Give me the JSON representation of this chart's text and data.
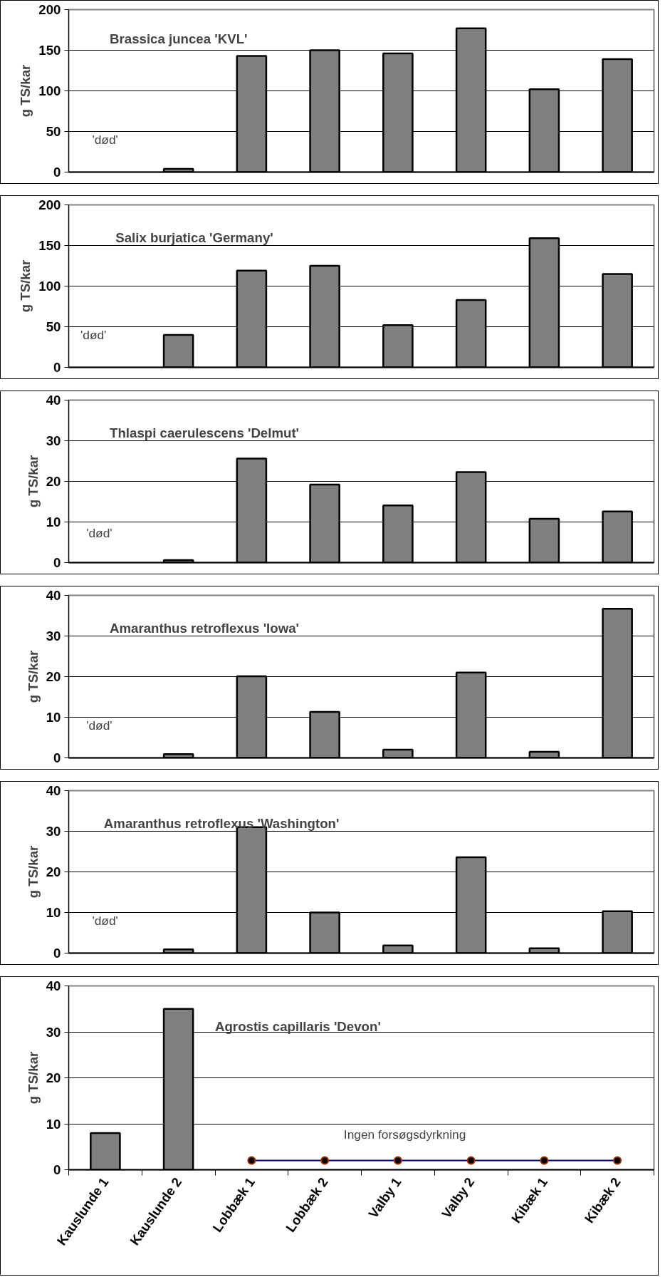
{
  "chart_data": [
    {
      "type": "bar",
      "title": "Brassica juncea 'KVL'",
      "ylabel": "g TS/kar",
      "categories": [
        null,
        null,
        null,
        null,
        null,
        null,
        null,
        null
      ],
      "values": [
        null,
        4,
        143,
        150,
        146,
        177,
        102,
        139
      ],
      "color": "#808080",
      "ylim": [
        0,
        200
      ],
      "yticks": [
        0,
        50,
        100,
        150,
        200
      ],
      "grid": "y",
      "tick_labels": "y",
      "annotations": [
        "'død'"
      ]
    },
    {
      "type": "bar",
      "title": "Salix burjatica 'Germany'",
      "ylabel": "g TS/kar",
      "categories": [
        null,
        null,
        null,
        null,
        null,
        null,
        null,
        null
      ],
      "values": [
        null,
        40,
        119,
        125,
        52,
        83,
        159,
        115
      ],
      "color": "#808080",
      "ylim": [
        0,
        200
      ],
      "yticks": [
        0,
        50,
        100,
        150,
        200
      ],
      "grid": "y",
      "tick_labels": "y",
      "annotations": [
        "'død'"
      ]
    },
    {
      "type": "bar",
      "title": "Thlaspi caerulescens 'Delmut'",
      "ylabel": "g TS/kar",
      "categories": [
        null,
        null,
        null,
        null,
        null,
        null,
        null,
        null
      ],
      "values": [
        null,
        0.6,
        25.6,
        19.2,
        14.1,
        22.3,
        10.8,
        12.6
      ],
      "color": "#808080",
      "ylim": [
        0,
        40
      ],
      "yticks": [
        0,
        10,
        20,
        30,
        40
      ],
      "grid": "y",
      "tick_labels": "y",
      "annotations": [
        "'død'"
      ]
    },
    {
      "type": "bar",
      "title": "Amaranthus retroflexus 'Iowa'",
      "ylabel": "g TS/kar",
      "categories": [
        null,
        null,
        null,
        null,
        null,
        null,
        null,
        null
      ],
      "values": [
        null,
        0.9,
        20.1,
        11.3,
        2.0,
        21.0,
        1.5,
        36.7
      ],
      "color": "#808080",
      "ylim": [
        0,
        40
      ],
      "yticks": [
        0,
        10,
        20,
        30,
        40
      ],
      "grid": "y",
      "tick_labels": "y",
      "annotations": [
        "'død'"
      ]
    },
    {
      "type": "bar",
      "title": "Amaranthus retroflexus 'Washington'",
      "ylabel": "g TS/kar",
      "categories": [
        null,
        null,
        null,
        null,
        null,
        null,
        null,
        null
      ],
      "values": [
        null,
        0.9,
        31.0,
        10.0,
        1.9,
        23.6,
        1.2,
        10.3
      ],
      "color": "#808080",
      "ylim": [
        0,
        40
      ],
      "yticks": [
        0,
        10,
        20,
        30,
        40
      ],
      "grid": "y",
      "tick_labels": "y",
      "annotations": [
        "'død'"
      ]
    },
    {
      "type": "bar",
      "title": "Agrostis capillaris 'Devon'",
      "ylabel": "g TS/kar",
      "categories": [
        "Kauslunde 1",
        "Kauslunde 2",
        "Lobbæk 1",
        "Lobbæk 2",
        "Valby 1",
        "Valby 2",
        "Kibæk 1",
        "Kibæk 2"
      ],
      "series": [
        {
          "type": "bar",
          "color": "#808080",
          "values": [
            8,
            35,
            null,
            null,
            null,
            null,
            null,
            null
          ]
        },
        {
          "type": "line",
          "color": "#000080",
          "marker": "circle",
          "values": [
            null,
            null,
            2,
            2,
            2,
            2,
            2,
            2
          ]
        }
      ],
      "ylim": [
        0,
        40
      ],
      "yticks": [
        0,
        10,
        20,
        30,
        40
      ],
      "grid": "y",
      "annotations": [
        "Ingen forsøgsdyrkning"
      ]
    }
  ]
}
